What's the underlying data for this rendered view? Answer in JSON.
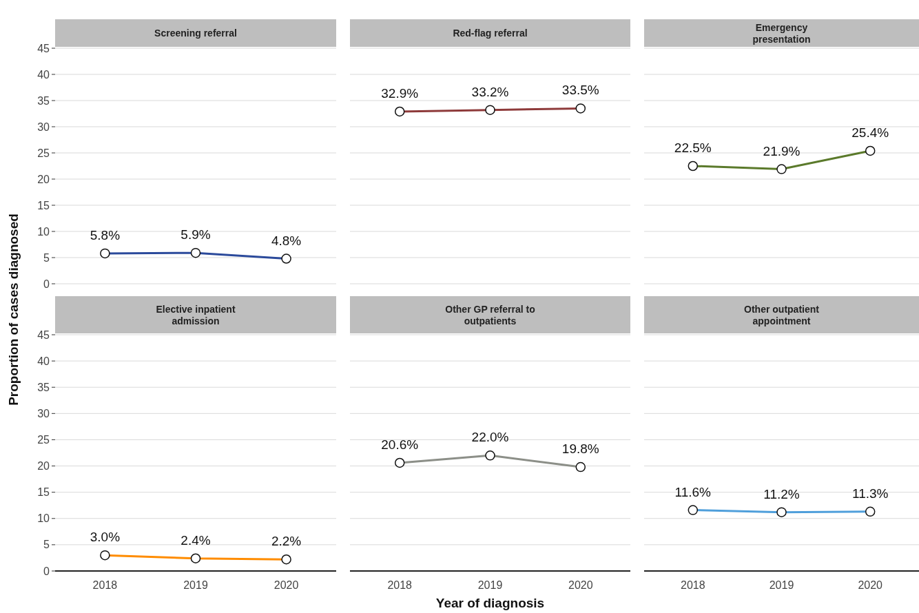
{
  "chart_data": [
    {
      "type": "line",
      "title": "Screening referral",
      "ylabel": "Proportion of cases diagnosed",
      "categories": [
        "2018",
        "2019",
        "2020"
      ],
      "series": [
        {
          "color": "#2b4a9b",
          "values": [
            5.8,
            5.9,
            4.8
          ],
          "value_labels": [
            "5.8%",
            "5.9%",
            "4.8%"
          ]
        }
      ],
      "ylim": [
        0,
        45
      ],
      "yticks": [
        0,
        5,
        10,
        15,
        20,
        25,
        30,
        35,
        40,
        45
      ],
      "grid": "y",
      "marker": "circle",
      "tick_labels": "y"
    },
    {
      "type": "line",
      "title": "Red-flag referral",
      "categories": [
        "2018",
        "2019",
        "2020"
      ],
      "series": [
        {
          "color": "#8e3a3a",
          "values": [
            32.9,
            33.2,
            33.5
          ],
          "value_labels": [
            "32.9%",
            "33.2%",
            "33.5%"
          ]
        }
      ],
      "ylim": [
        0,
        45
      ],
      "yticks": [
        0,
        5,
        10,
        15,
        20,
        25,
        30,
        35,
        40,
        45
      ],
      "grid": "y",
      "marker": "circle",
      "tick_labels": false
    },
    {
      "type": "line",
      "title": "Emergency presentation",
      "categories": [
        "2018",
        "2019",
        "2020"
      ],
      "series": [
        {
          "color": "#5b7a2b",
          "values": [
            22.5,
            21.9,
            25.4
          ],
          "value_labels": [
            "22.5%",
            "21.9%",
            "25.4%"
          ]
        }
      ],
      "ylim": [
        0,
        45
      ],
      "yticks": [
        0,
        5,
        10,
        15,
        20,
        25,
        30,
        35,
        40,
        45
      ],
      "grid": "y",
      "marker": "circle",
      "tick_labels": false
    },
    {
      "type": "line",
      "title": "Elective inpatient admission",
      "categories": [
        "2018",
        "2019",
        "2020"
      ],
      "series": [
        {
          "color": "#ff8c00",
          "values": [
            3.0,
            2.4,
            2.2
          ],
          "value_labels": [
            "3.0%",
            "2.4%",
            "2.2%"
          ]
        }
      ],
      "ylim": [
        0,
        45
      ],
      "yticks": [
        0,
        5,
        10,
        15,
        20,
        25,
        30,
        35,
        40,
        45
      ],
      "grid": "y",
      "marker": "circle"
    },
    {
      "type": "line",
      "title": "Other GP referral to outpatients",
      "xlabel": "Year of diagnosis",
      "categories": [
        "2018",
        "2019",
        "2020"
      ],
      "series": [
        {
          "color": "#8c8f88",
          "values": [
            20.6,
            22.0,
            19.8
          ],
          "value_labels": [
            "20.6%",
            "22.0%",
            "19.8%"
          ]
        }
      ],
      "ylim": [
        0,
        45
      ],
      "yticks": [
        0,
        5,
        10,
        15,
        20,
        25,
        30,
        35,
        40,
        45
      ],
      "grid": "y",
      "marker": "circle",
      "tick_labels": "x"
    },
    {
      "type": "line",
      "title": "Other outpatient appointment",
      "categories": [
        "2018",
        "2019",
        "2020"
      ],
      "series": [
        {
          "color": "#4f9fdb",
          "values": [
            11.6,
            11.2,
            11.3
          ],
          "value_labels": [
            "11.6%",
            "11.2%",
            "11.3%"
          ]
        }
      ],
      "ylim": [
        0,
        45
      ],
      "yticks": [
        0,
        5,
        10,
        15,
        20,
        25,
        30,
        35,
        40,
        45
      ],
      "grid": "y",
      "marker": "circle",
      "tick_labels": "x"
    }
  ]
}
